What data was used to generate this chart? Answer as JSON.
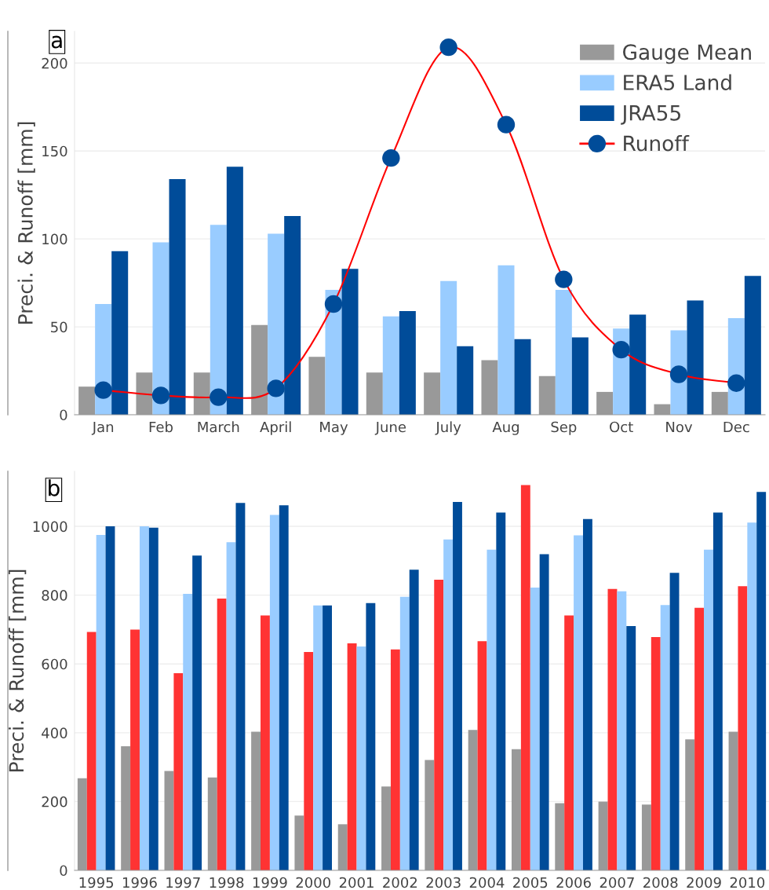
{
  "chart_data": [
    {
      "type": "bar",
      "ylabel": "Preci. & Runoff [mm]",
      "annotations": [
        "a"
      ],
      "categories": [
        "Jan",
        "Feb",
        "March",
        "April",
        "May",
        "June",
        "July",
        "Aug",
        "Sep",
        "Oct",
        "Nov",
        "Dec"
      ],
      "series": [
        {
          "name": "Gauge Mean",
          "color": "#999999",
          "values": [
            16,
            24,
            24,
            51,
            33,
            24,
            24,
            31,
            22,
            13,
            6,
            13
          ]
        },
        {
          "name": "ERA5 Land",
          "color": "#99ccff",
          "values": [
            63,
            98,
            108,
            103,
            71,
            56,
            76,
            85,
            71,
            49,
            48,
            55
          ]
        },
        {
          "name": "JRA55",
          "color": "#004c99",
          "values": [
            93,
            134,
            141,
            113,
            83,
            59,
            39,
            43,
            44,
            57,
            65,
            79
          ]
        },
        {
          "name": "Runoff",
          "type": "line",
          "color": "#ff0000",
          "marker": "circle",
          "colors": [
            "#004c99",
            "#004c99",
            "#004c99",
            "#004c99",
            "#004c99",
            "#004c99",
            "#004c99",
            "#004c99",
            "#004c99",
            "#004c99",
            "#004c99",
            "#004c99"
          ],
          "values": [
            14,
            11,
            10,
            15,
            63,
            146,
            209,
            165,
            77,
            37,
            23,
            18
          ]
        }
      ],
      "ylim": [
        0,
        218
      ],
      "yticks": [
        0,
        50,
        100,
        150,
        200
      ],
      "grid": "y",
      "legend": "top right"
    },
    {
      "type": "bar",
      "ylabel": "Preci. & Runoff [mm]",
      "annotations": [
        "b"
      ],
      "categories": [
        "1995",
        "1996",
        "1997",
        "1998",
        "1999",
        "2000",
        "2001",
        "2002",
        "2003",
        "2004",
        "2005",
        "2006",
        "2007",
        "2008",
        "2009",
        "2010"
      ],
      "series": [
        {
          "color": "#999999",
          "values": [
            268,
            361,
            289,
            270,
            403,
            159,
            134,
            244,
            321,
            408,
            352,
            195,
            200,
            191,
            381,
            403
          ]
        },
        {
          "color": "#ff3333",
          "values": [
            693,
            700,
            573,
            790,
            741,
            635,
            660,
            642,
            845,
            666,
            1120,
            741,
            818,
            678,
            763,
            826
          ]
        },
        {
          "color": "#99ccff",
          "values": [
            975,
            1000,
            804,
            954,
            1033,
            770,
            651,
            795,
            962,
            932,
            822,
            974,
            811,
            771,
            932,
            1011
          ]
        },
        {
          "color": "#004c99",
          "values": [
            1000,
            996,
            915,
            1068,
            1061,
            770,
            777,
            874,
            1071,
            1040,
            919,
            1021,
            710,
            865,
            1040,
            1100
          ]
        }
      ],
      "ylim": [
        0,
        1160
      ],
      "yticks": [
        0,
        200,
        400,
        600,
        800,
        1000
      ],
      "grid": "y",
      "legend": false
    }
  ]
}
